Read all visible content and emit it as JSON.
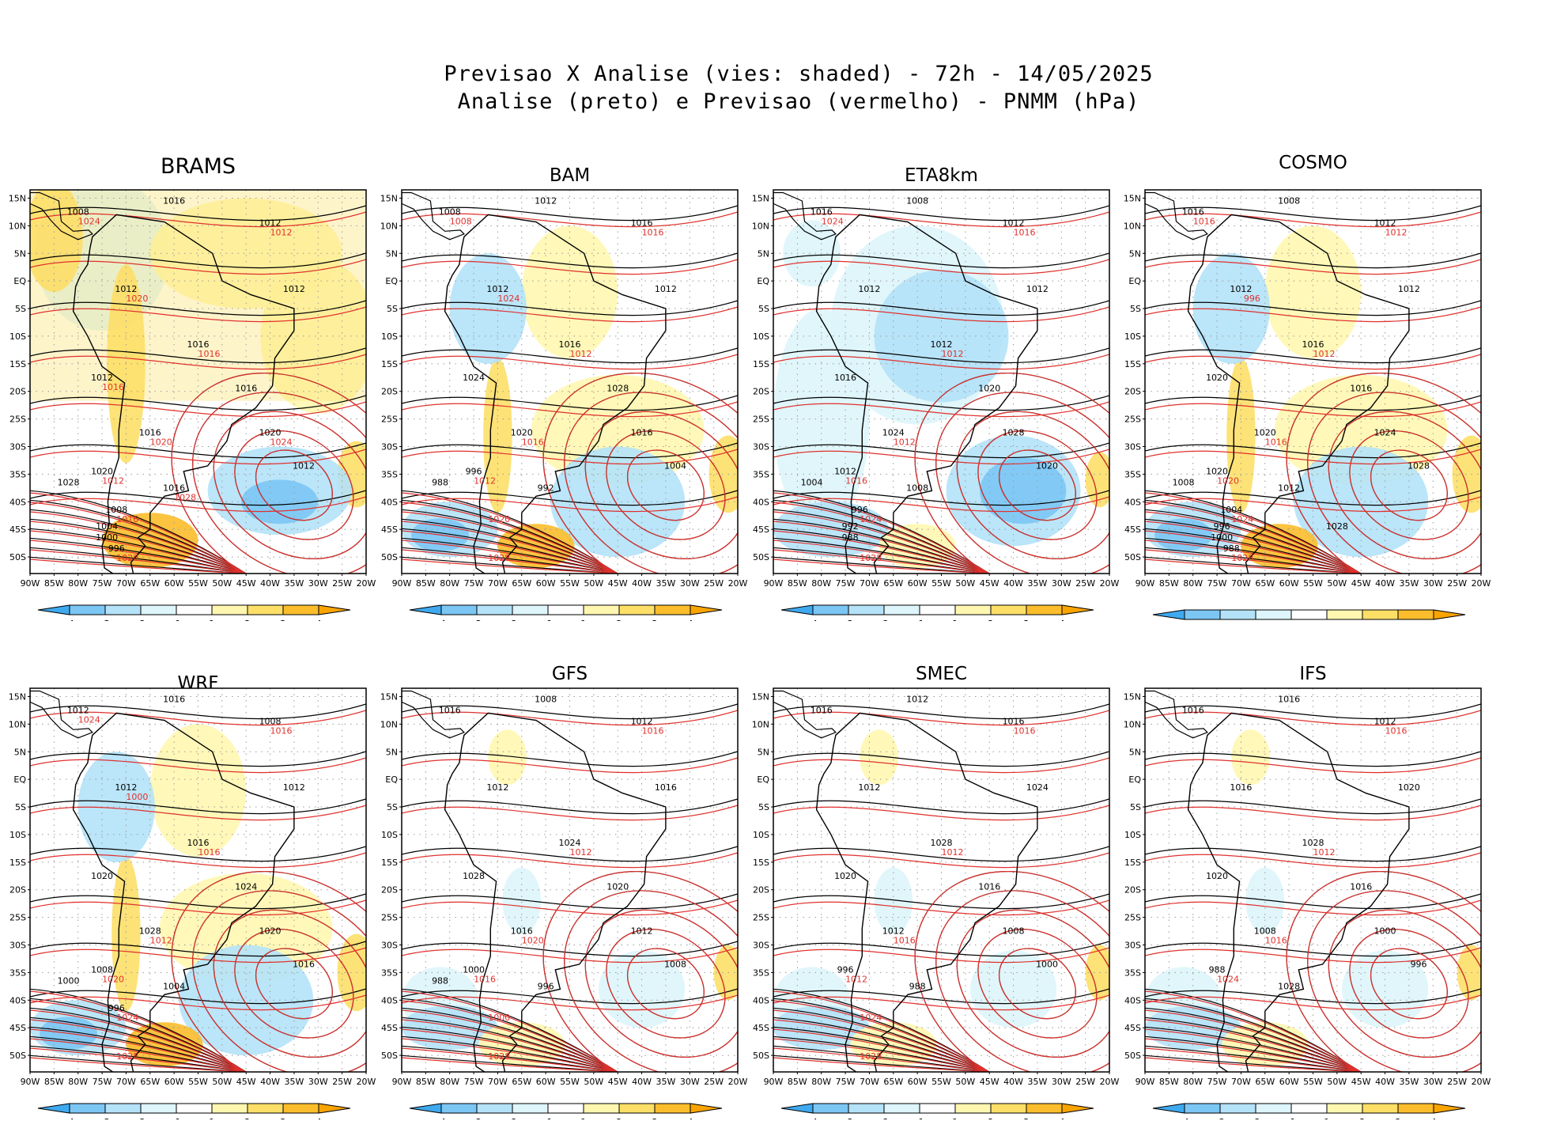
{
  "title": {
    "line1": "Previsao X Analise (vies: shaded) - 72h - 14/05/2025",
    "line2": "Analise (preto) e Previsao (vermelho) - PNMM (hPa)"
  },
  "lat_labels": [
    "15N",
    "10N",
    "5N",
    "EQ",
    "5S",
    "10S",
    "15S",
    "20S",
    "25S",
    "30S",
    "35S",
    "40S",
    "45S",
    "50S"
  ],
  "lon_labels": [
    "90W",
    "85W",
    "80W",
    "75W",
    "70W",
    "65W",
    "60W",
    "55W",
    "50W",
    "45W",
    "40W",
    "35W",
    "30W",
    "25W",
    "20W"
  ],
  "colorbar": {
    "labels": [
      "-4",
      "-3",
      "-2",
      "-1",
      "1",
      "2",
      "3",
      "4"
    ],
    "colors": [
      "#3fa9ef",
      "#7cc6f4",
      "#b4e2f8",
      "#ddf5fb",
      "#ffffff",
      "#fff7b0",
      "#fddf68",
      "#fbbd2b",
      "#f9a400"
    ]
  },
  "contour_colors": {
    "analysis": "#000000",
    "forecast": "#e0312d"
  },
  "panels": [
    {
      "model": "BRAMS",
      "bias": "positive",
      "labels_black": [
        "1008",
        "1016",
        "1012",
        "1012",
        "1012",
        "1016",
        "1012",
        "1016",
        "1016",
        "1020",
        "1012",
        "1020",
        "1016",
        "1028",
        "1008",
        "1004",
        "1000",
        "996"
      ],
      "labels_red": [
        "1012",
        "1016",
        "1020",
        "1012",
        "1016",
        "1020",
        "1024",
        "1020",
        "1016",
        "1024",
        "1028"
      ]
    },
    {
      "model": "BAM",
      "bias": "mixed",
      "labels_black": [
        "1008",
        "1012",
        "1016",
        "1012",
        "1012",
        "1016",
        "1024",
        "1028",
        "1020",
        "1016",
        "1004",
        "996",
        "992",
        "988"
      ],
      "labels_red": [
        "1016",
        "1012",
        "1016",
        "1012",
        "1020",
        "1028",
        "1008",
        "1024"
      ]
    },
    {
      "model": "ETA8km",
      "bias": "negative",
      "labels_black": [
        "1016",
        "1008",
        "1012",
        "1012",
        "1012",
        "1012",
        "1016",
        "1020",
        "1024",
        "1028",
        "1020",
        "1012",
        "1008",
        "1004",
        "996",
        "992",
        "988"
      ],
      "labels_red": [
        "1016",
        "1012",
        "1012",
        "1016",
        "1024",
        "1028",
        "1024"
      ]
    },
    {
      "model": "COSMO",
      "bias": "mixed",
      "labels_black": [
        "1016",
        "1008",
        "1012",
        "1012",
        "1012",
        "1016",
        "1020",
        "1016",
        "1020",
        "1024",
        "1028",
        "1020",
        "1012",
        "1008",
        "1004",
        "996",
        "1000",
        "988",
        "1028"
      ],
      "labels_red": [
        "1012",
        "1012",
        "1016",
        "1020",
        "1024",
        "1028",
        "1016",
        "996"
      ]
    },
    {
      "model": "WRF",
      "bias": "mixed",
      "labels_black": [
        "1012",
        "1016",
        "1008",
        "1012",
        "1012",
        "1016",
        "1020",
        "1024",
        "1028",
        "1020",
        "1016",
        "1008",
        "1004",
        "1000",
        "996"
      ],
      "labels_red": [
        "1016",
        "1016",
        "1012",
        "1020",
        "1024",
        "1028",
        "1024",
        "1000"
      ]
    },
    {
      "model": "GFS",
      "bias": "weak",
      "labels_black": [
        "1016",
        "1008",
        "1012",
        "1012",
        "1016",
        "1024",
        "1028",
        "1020",
        "1016",
        "1012",
        "1008",
        "1000",
        "996",
        "988"
      ],
      "labels_red": [
        "1016",
        "1012",
        "1020",
        "1016",
        "1000",
        "1028"
      ]
    },
    {
      "model": "SMEC",
      "bias": "weak",
      "labels_black": [
        "1016",
        "1012",
        "1016",
        "1012",
        "1024",
        "1028",
        "1020",
        "1016",
        "1012",
        "1008",
        "1000",
        "996",
        "988"
      ],
      "labels_red": [
        "1016",
        "1012",
        "1016",
        "1012",
        "1024",
        "1028"
      ]
    },
    {
      "model": "IFS",
      "bias": "weak",
      "labels_black": [
        "1016",
        "1016",
        "1012",
        "1016",
        "1020",
        "1028",
        "1020",
        "1016",
        "1008",
        "1000",
        "996",
        "988",
        "1028"
      ],
      "labels_red": [
        "1016",
        "1012",
        "1016",
        "1024"
      ]
    }
  ]
}
